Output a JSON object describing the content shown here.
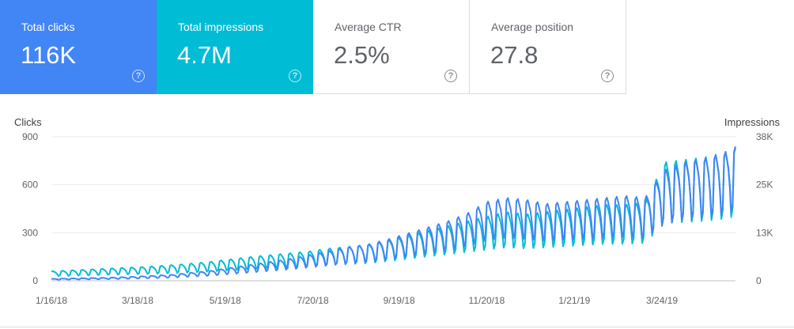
{
  "cards": [
    {
      "label": "Total clicks",
      "value": "116K"
    },
    {
      "label": "Total impressions",
      "value": "4.7M"
    },
    {
      "label": "Average CTR",
      "value": "2.5%"
    },
    {
      "label": "Average position",
      "value": "27.8"
    }
  ],
  "help_glyph": "?",
  "colors": {
    "clicks": "#4285f4",
    "impressions": "#00bcd4",
    "grid": "#e8eaed",
    "baseline": "#bdc1c6"
  },
  "chart_data": {
    "type": "line",
    "ylabel_left": "Clicks",
    "ylabel_right": "Impressions",
    "y_left_ticks": [
      "900",
      "600",
      "300",
      "0"
    ],
    "y_right_ticks": [
      "38K",
      "25K",
      "13K",
      "0"
    ],
    "ylim_left": [
      0,
      900
    ],
    "ylim_right": [
      0,
      38000
    ],
    "x_tick_labels": [
      "1/16/18",
      "3/18/18",
      "5/19/18",
      "7/20/18",
      "9/19/18",
      "11/20/18",
      "1/21/19",
      "3/24/19"
    ],
    "x_range": [
      "1/16/18",
      "5/15/19"
    ],
    "grid": true,
    "series": [
      {
        "name": "Clicks",
        "axis": "left",
        "weekly_points": [
          {
            "date": "1/16/18",
            "value": 10
          },
          {
            "date": "1/30/18",
            "value": 12
          },
          {
            "date": "2/13/18",
            "value": 14
          },
          {
            "date": "2/27/18",
            "value": 16
          },
          {
            "date": "3/13/18",
            "value": 20
          },
          {
            "date": "3/27/18",
            "value": 25
          },
          {
            "date": "4/10/18",
            "value": 30
          },
          {
            "date": "4/24/18",
            "value": 40
          },
          {
            "date": "5/8/18",
            "value": 50
          },
          {
            "date": "5/22/18",
            "value": 65
          },
          {
            "date": "6/5/18",
            "value": 80
          },
          {
            "date": "6/19/18",
            "value": 95
          },
          {
            "date": "7/3/18",
            "value": 110
          },
          {
            "date": "7/17/18",
            "value": 130
          },
          {
            "date": "7/31/18",
            "value": 150
          },
          {
            "date": "8/14/18",
            "value": 170
          },
          {
            "date": "8/28/18",
            "value": 185
          },
          {
            "date": "9/11/18",
            "value": 210
          },
          {
            "date": "9/25/18",
            "value": 240
          },
          {
            "date": "10/9/18",
            "value": 270
          },
          {
            "date": "10/23/18",
            "value": 300
          },
          {
            "date": "11/6/18",
            "value": 340
          },
          {
            "date": "11/20/18",
            "value": 400
          },
          {
            "date": "12/4/18",
            "value": 420
          },
          {
            "date": "12/18/18",
            "value": 410
          },
          {
            "date": "1/1/19",
            "value": 390
          },
          {
            "date": "1/15/19",
            "value": 400
          },
          {
            "date": "1/29/19",
            "value": 410
          },
          {
            "date": "2/12/19",
            "value": 420
          },
          {
            "date": "2/26/19",
            "value": 430
          },
          {
            "date": "3/12/19",
            "value": 420
          },
          {
            "date": "3/26/19",
            "value": 560
          },
          {
            "date": "4/9/19",
            "value": 600
          },
          {
            "date": "4/23/19",
            "value": 620
          },
          {
            "date": "5/7/19",
            "value": 650
          },
          {
            "date": "5/15/19",
            "value": 680
          }
        ]
      },
      {
        "name": "Impressions",
        "axis": "right",
        "weekly_points": [
          {
            "date": "1/16/18",
            "value": 2000
          },
          {
            "date": "1/30/18",
            "value": 2200
          },
          {
            "date": "2/13/18",
            "value": 2400
          },
          {
            "date": "2/27/18",
            "value": 2600
          },
          {
            "date": "3/13/18",
            "value": 2800
          },
          {
            "date": "3/27/18",
            "value": 3000
          },
          {
            "date": "4/10/18",
            "value": 3300
          },
          {
            "date": "4/24/18",
            "value": 3600
          },
          {
            "date": "5/8/18",
            "value": 4000
          },
          {
            "date": "5/22/18",
            "value": 4500
          },
          {
            "date": "6/5/18",
            "value": 5000
          },
          {
            "date": "6/19/18",
            "value": 5400
          },
          {
            "date": "7/3/18",
            "value": 5800
          },
          {
            "date": "7/17/18",
            "value": 6200
          },
          {
            "date": "7/31/18",
            "value": 6800
          },
          {
            "date": "8/14/18",
            "value": 7200
          },
          {
            "date": "8/28/18",
            "value": 7600
          },
          {
            "date": "9/11/18",
            "value": 8500
          },
          {
            "date": "9/25/18",
            "value": 9500
          },
          {
            "date": "10/9/18",
            "value": 10500
          },
          {
            "date": "10/23/18",
            "value": 11500
          },
          {
            "date": "11/6/18",
            "value": 12500
          },
          {
            "date": "11/20/18",
            "value": 13500
          },
          {
            "date": "12/4/18",
            "value": 14500
          },
          {
            "date": "12/18/18",
            "value": 14000
          },
          {
            "date": "1/1/19",
            "value": 14500
          },
          {
            "date": "1/15/19",
            "value": 15000
          },
          {
            "date": "1/29/19",
            "value": 15500
          },
          {
            "date": "2/12/19",
            "value": 16000
          },
          {
            "date": "2/26/19",
            "value": 16000
          },
          {
            "date": "3/12/19",
            "value": 16500
          },
          {
            "date": "3/26/19",
            "value": 25000
          },
          {
            "date": "4/9/19",
            "value": 25500
          },
          {
            "date": "4/23/19",
            "value": 26000
          },
          {
            "date": "5/7/19",
            "value": 27000
          },
          {
            "date": "5/15/19",
            "value": 28000
          }
        ]
      }
    ]
  }
}
